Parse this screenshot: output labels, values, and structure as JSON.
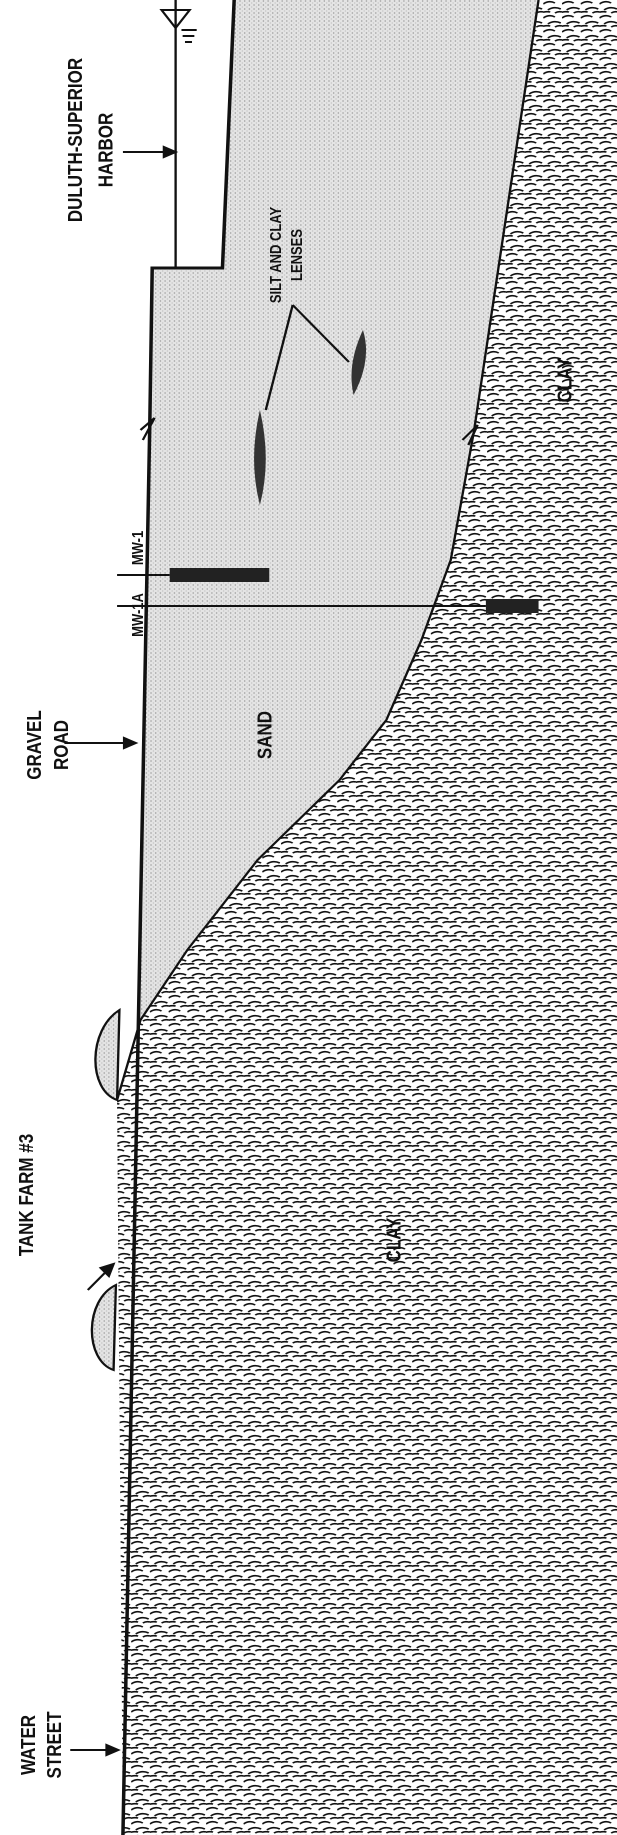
{
  "labels": {
    "harbor": [
      "DULUTH-SUPERIOR",
      "HARBOR"
    ],
    "lenses": [
      "SILT AND CLAY",
      "LENSES"
    ],
    "clay_upper": "CLAY",
    "clay_lower": "CLAY",
    "mw1": "MW-1",
    "mw1a": "MW-1A",
    "gravel_road": [
      "GRAVEL",
      "ROAD"
    ],
    "sand": "SAND",
    "tank_farm": "TANK FARM #3",
    "water_street": [
      "WATER",
      "STREET"
    ]
  }
}
